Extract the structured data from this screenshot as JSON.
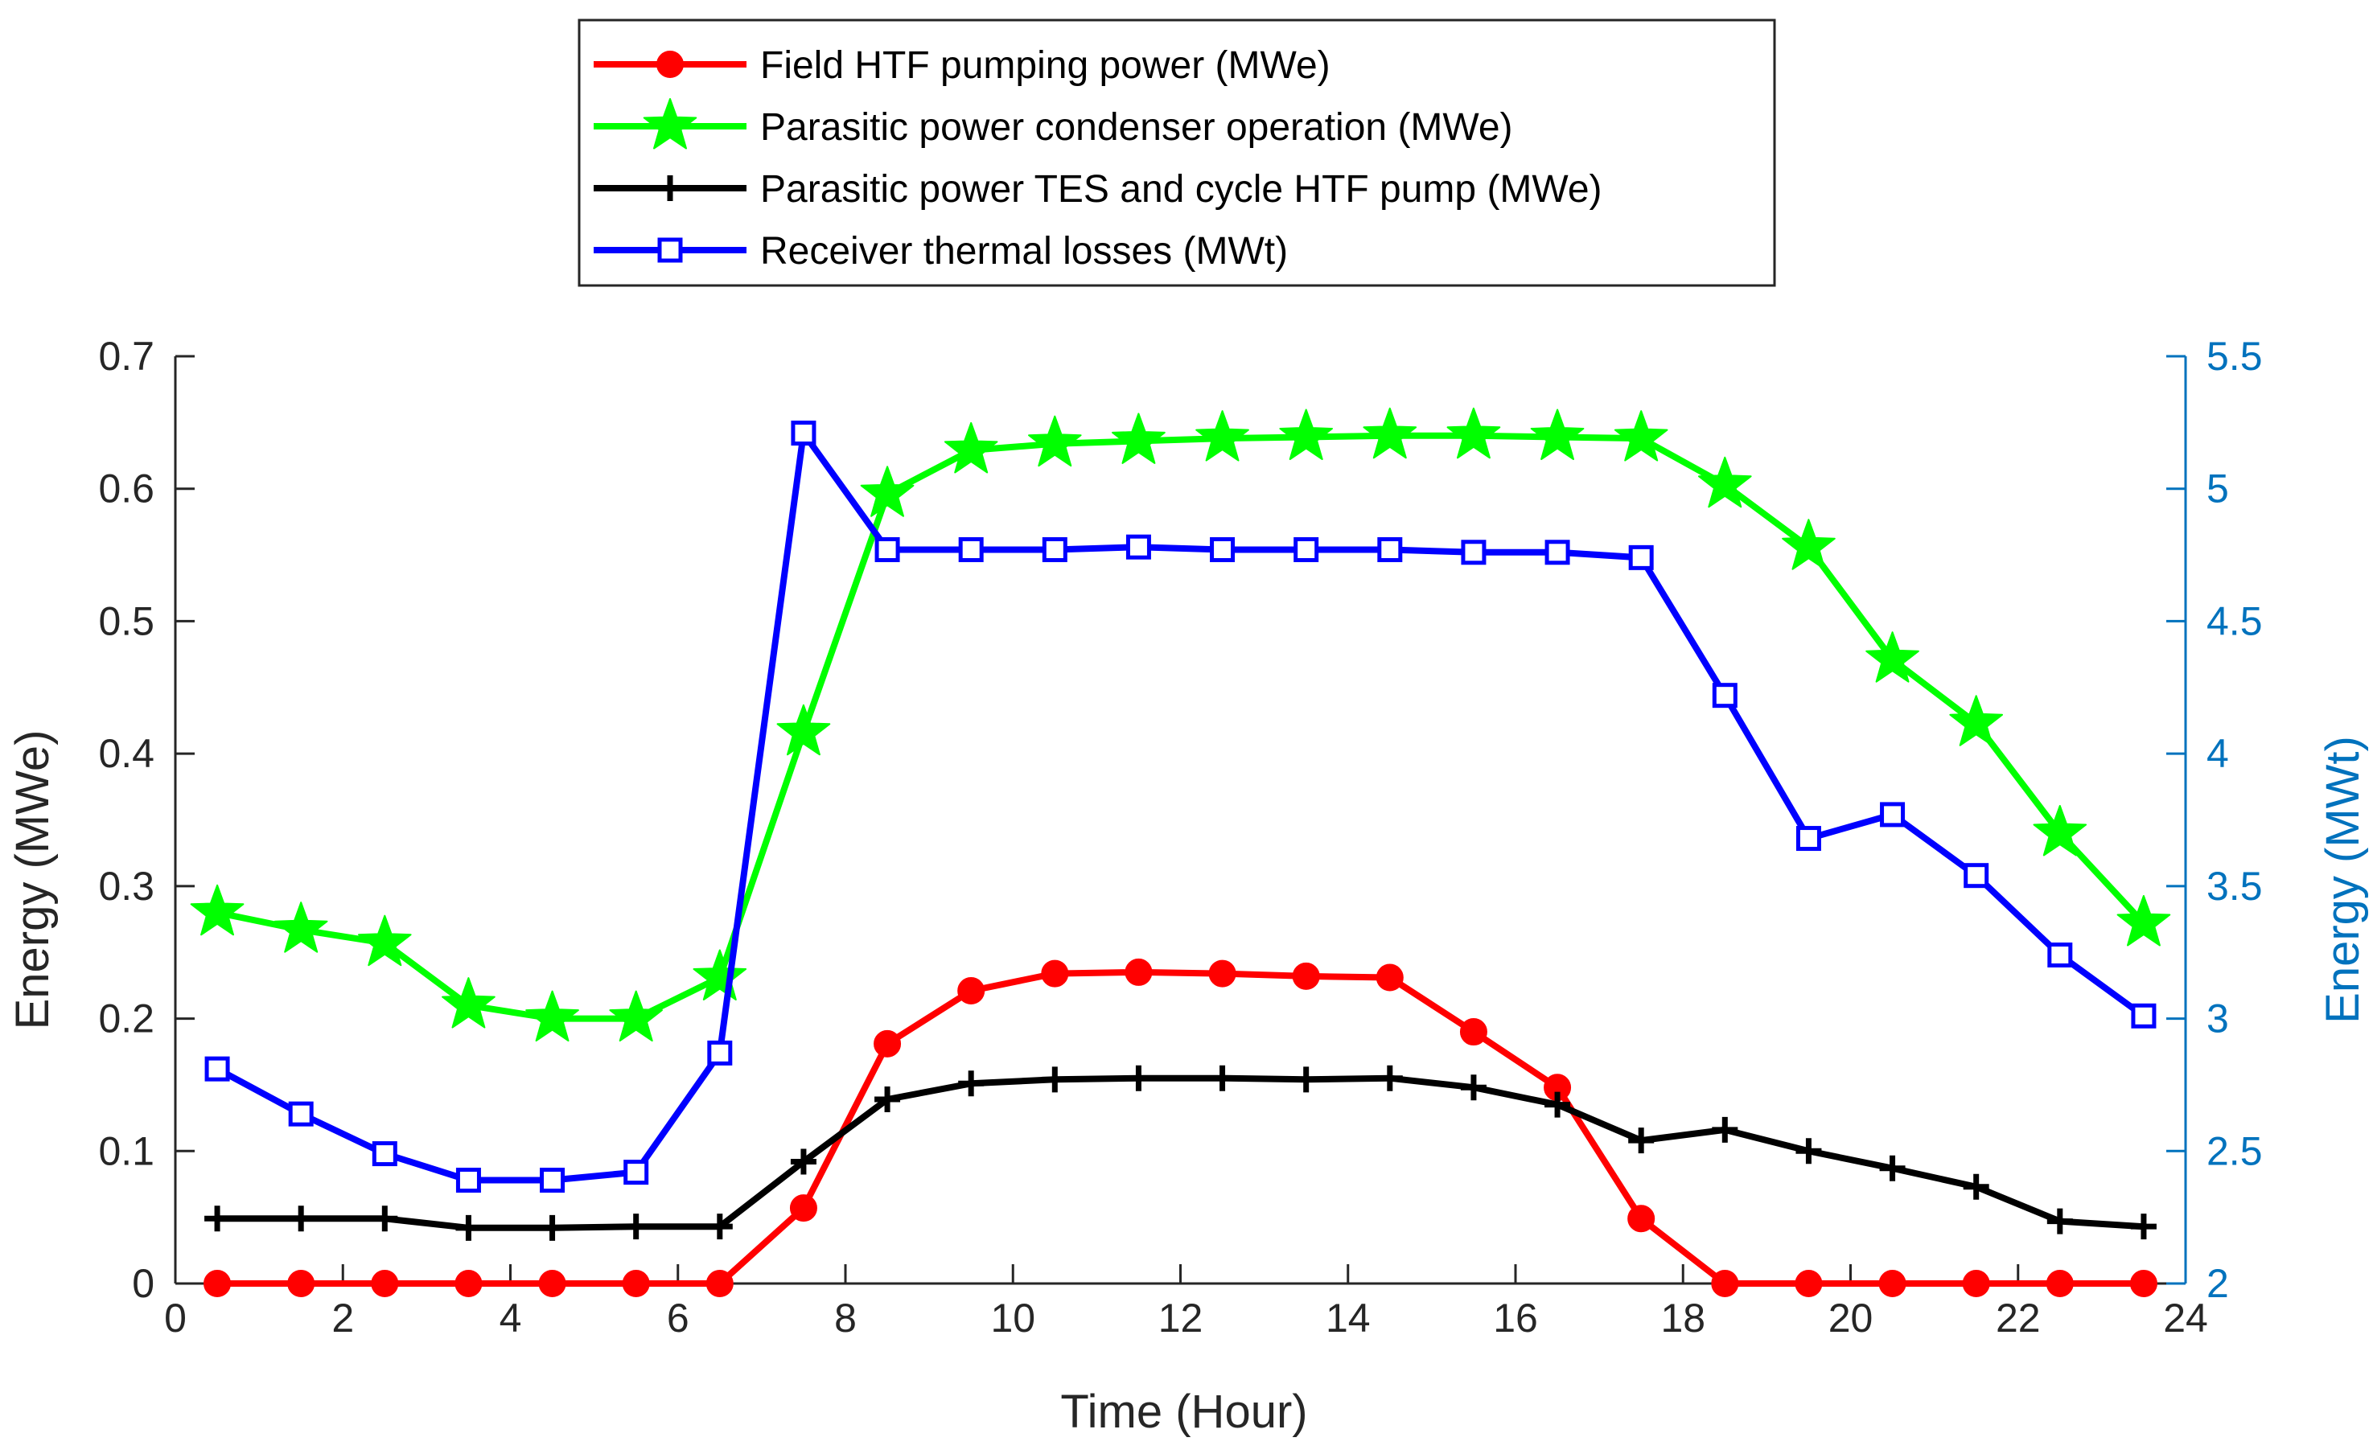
{
  "chart_data": {
    "type": "line",
    "title": "",
    "xlabel": "Time (Hour)",
    "ylabel_left": "Energy (MWe)",
    "ylabel_right": "Energy (MWt)",
    "xlim": [
      0,
      24
    ],
    "ylim_left": [
      0,
      0.7
    ],
    "ylim_right": [
      2,
      5.5
    ],
    "grid": false,
    "legend_position": "top-center",
    "x_ticks": [
      "0",
      "2",
      "4",
      "6",
      "8",
      "10",
      "12",
      "14",
      "16",
      "18",
      "20",
      "22",
      "24"
    ],
    "y_ticks_left": [
      "0",
      "0.1",
      "0.2",
      "0.3",
      "0.4",
      "0.5",
      "0.6",
      "0.7"
    ],
    "y_ticks_right": [
      "2",
      "2.5",
      "3",
      "3.5",
      "4",
      "4.5",
      "5",
      "5.5"
    ],
    "x": [
      0.5,
      1.5,
      2.5,
      3.5,
      4.5,
      5.5,
      6.5,
      7.5,
      8.5,
      9.5,
      10.5,
      11.5,
      12.5,
      13.5,
      14.5,
      15.5,
      16.5,
      17.5,
      18.5,
      19.5,
      20.5,
      21.5,
      22.5,
      23.5
    ],
    "series": [
      {
        "name": "Field HTF pumping power (MWe)",
        "axis": "left",
        "color": "#ff0000",
        "marker": "circle",
        "values": [
          0,
          0,
          0,
          0,
          0,
          0,
          0,
          0.057,
          0.181,
          0.221,
          0.234,
          0.235,
          0.234,
          0.232,
          0.231,
          0.19,
          0.148,
          0.049,
          0,
          0,
          0,
          0,
          0,
          0
        ]
      },
      {
        "name": "Parasitic power condenser operation (MWe)",
        "axis": "left",
        "color": "#00ff00",
        "marker": "star",
        "values": [
          0.28,
          0.267,
          0.257,
          0.21,
          0.2,
          0.2,
          0.231,
          0.416,
          0.596,
          0.629,
          0.634,
          0.636,
          0.638,
          0.639,
          0.64,
          0.64,
          0.639,
          0.638,
          0.603,
          0.556,
          0.471,
          0.423,
          0.34,
          0.272
        ]
      },
      {
        "name": "Parasitic power TES and cycle HTF pump (MWe)",
        "axis": "left",
        "color": "#000000",
        "marker": "plus",
        "values": [
          0.049,
          0.049,
          0.049,
          0.042,
          0.042,
          0.043,
          0.043,
          0.092,
          0.139,
          0.151,
          0.154,
          0.155,
          0.155,
          0.154,
          0.155,
          0.148,
          0.135,
          0.108,
          0.116,
          0.1,
          0.087,
          0.073,
          0.047,
          0.043
        ]
      },
      {
        "name": "Receiver thermal losses (MWt)",
        "axis": "right",
        "color": "#0000ff",
        "marker": "square",
        "values": [
          2.81,
          2.64,
          2.49,
          2.39,
          2.39,
          2.42,
          2.87,
          5.21,
          4.77,
          4.77,
          4.77,
          4.78,
          4.77,
          4.77,
          4.77,
          4.76,
          4.76,
          4.74,
          4.22,
          3.68,
          3.77,
          3.54,
          3.24,
          3.01
        ]
      }
    ],
    "colors": {
      "axis": "#262626",
      "right_axis": "#0072bd"
    }
  }
}
